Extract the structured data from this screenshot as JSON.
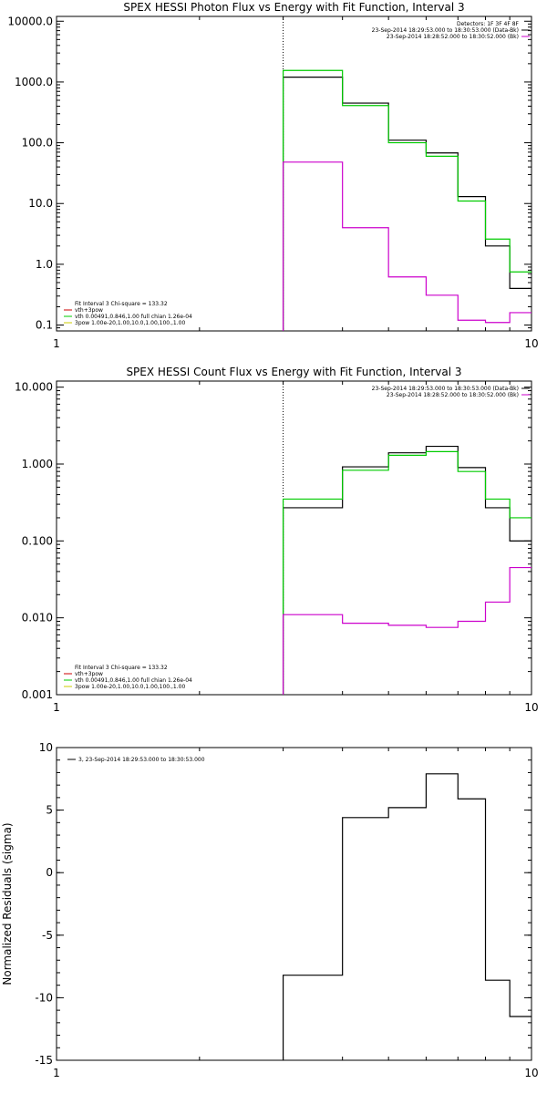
{
  "chart_data": [
    {
      "type": "line",
      "step": true,
      "title": "SPEX HESSI Photon Flux vs Energy with Fit Function, Interval 3",
      "xlabel": "",
      "ylabel": "",
      "xscale": "log",
      "yscale": "log",
      "xlim": [
        1,
        10
      ],
      "ylim": [
        0.08,
        12000
      ],
      "xticks": [
        {
          "v": 1,
          "label": "1"
        },
        {
          "v": 10,
          "label": "10"
        }
      ],
      "yticks": [
        {
          "v": 0.1,
          "label": "0.1"
        },
        {
          "v": 1,
          "label": "1.0"
        },
        {
          "v": 10,
          "label": "10.0"
        },
        {
          "v": 100,
          "label": "100.0"
        },
        {
          "v": 1000,
          "label": "1000.0"
        },
        {
          "v": 10000,
          "label": "10000.0"
        }
      ],
      "vline": 3,
      "legend_top": {
        "lines": [
          "Detectors: 1F 3F 4F 8F",
          "23-Sep-2014 18:29:53.000 to 18:30:53.000 (Data-Bk)",
          "23-Sep-2014 18:28:52.000 to 18:30:52.000 (Bk)"
        ],
        "colors": [
          "",
          "#000000",
          "#cc00cc"
        ]
      },
      "legend_bottom": {
        "lines": [
          "Fit Interval 3   Chi-square = 133.32",
          "vth+3pow",
          "vth 0.00491,0.846,1.00   full chian 1.26e-04",
          "3pow 1.00e-20,1.00,10.0,1.00,100.,1.00"
        ],
        "colors": [
          "",
          "#cc0000",
          "#00cc00",
          "#cccc00"
        ]
      },
      "edges": [
        3,
        4,
        5,
        6,
        7,
        8,
        9,
        10
      ],
      "series": [
        {
          "color": "#000000",
          "values": [
            1200,
            450,
            110,
            68,
            13,
            2.0,
            0.4
          ]
        },
        {
          "color": "#00cc00",
          "values": [
            1550,
            410,
            100,
            60,
            11,
            2.6,
            0.75
          ]
        },
        {
          "color": "#cc00cc",
          "values": [
            48,
            4.0,
            0.62,
            0.31,
            0.12,
            0.11,
            0.16
          ]
        }
      ]
    },
    {
      "type": "line",
      "step": true,
      "title": "SPEX HESSI Count Flux vs Energy with Fit Function, Interval 3",
      "xlabel": "",
      "ylabel": "",
      "xscale": "log",
      "yscale": "log",
      "xlim": [
        1,
        10
      ],
      "ylim": [
        0.001,
        12
      ],
      "xticks": [
        {
          "v": 1,
          "label": "1"
        },
        {
          "v": 10,
          "label": "10"
        }
      ],
      "yticks": [
        {
          "v": 0.001,
          "label": "0.001"
        },
        {
          "v": 0.01,
          "label": "0.010"
        },
        {
          "v": 0.1,
          "label": "0.100"
        },
        {
          "v": 1,
          "label": "1.000"
        },
        {
          "v": 10,
          "label": "10.000"
        }
      ],
      "vline": 3,
      "legend_top": {
        "lines": [
          "23-Sep-2014 18:29:53.000 to 18:30:53.000 (Data-Bk)",
          "23-Sep-2014 18:28:52.000 to 18:30:52.000 (Bk)"
        ],
        "colors": [
          "#000000",
          "#cc00cc"
        ]
      },
      "legend_bottom": {
        "lines": [
          "Fit Interval 3   Chi-square = 133.32",
          "vth+3pow",
          "vth 0.00491,0.846,1.00   full chian 1.26e-04",
          "3pow 1.00e-20,1.00,10.0,1.00,100.,1.00"
        ],
        "colors": [
          "",
          "#cc0000",
          "#00cc00",
          "#cccc00"
        ]
      },
      "edges": [
        3,
        4,
        5,
        6,
        7,
        8,
        9,
        10
      ],
      "series": [
        {
          "color": "#000000",
          "values": [
            0.27,
            0.92,
            1.4,
            1.7,
            0.9,
            0.27,
            0.1
          ]
        },
        {
          "color": "#00cc00",
          "values": [
            0.35,
            0.83,
            1.3,
            1.45,
            0.8,
            0.35,
            0.2
          ]
        },
        {
          "color": "#cc00cc",
          "values": [
            0.011,
            0.0085,
            0.008,
            0.0075,
            0.009,
            0.016,
            0.045
          ]
        }
      ]
    },
    {
      "type": "line",
      "step": true,
      "title": "",
      "xlabel": "",
      "ylabel": "Normalized Residuals (sigma)",
      "xscale": "log",
      "yscale": "linear",
      "xlim": [
        1,
        10
      ],
      "ylim": [
        -15,
        10
      ],
      "xticks": [
        {
          "v": 1,
          "label": "1"
        },
        {
          "v": 10,
          "label": "10"
        }
      ],
      "yticks": [
        {
          "v": -15,
          "label": "-15"
        },
        {
          "v": -10,
          "label": "-10"
        },
        {
          "v": -5,
          "label": "-5"
        },
        {
          "v": 0,
          "label": "0"
        },
        {
          "v": 5,
          "label": "5"
        },
        {
          "v": 10,
          "label": "10"
        }
      ],
      "legend_top_left": {
        "lines": [
          "3, 23-Sep-2014 18:29:53.000 to 18:30:53.000"
        ],
        "colors": [
          "#000000"
        ]
      },
      "edges": [
        3,
        4,
        5,
        6,
        7,
        8,
        9,
        10
      ],
      "series": [
        {
          "color": "#000000",
          "values": [
            -8.2,
            4.4,
            5.2,
            7.9,
            5.9,
            -8.6,
            -11.5
          ]
        }
      ]
    }
  ]
}
